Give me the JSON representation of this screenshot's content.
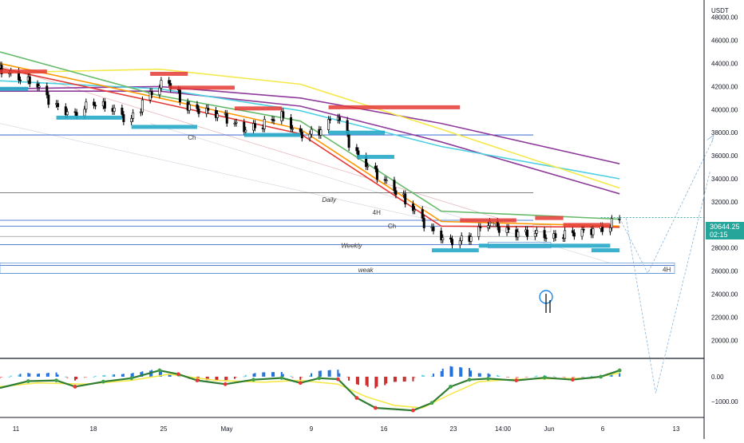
{
  "currency_label": "USDT",
  "price_axis": {
    "ticks": [
      "48000.00",
      "46000.00",
      "44000.00",
      "42000.00",
      "40000.00",
      "38000.00",
      "36000.00",
      "34000.00",
      "32000.00",
      "30000.00",
      "28000.00",
      "26000.00",
      "24000.00",
      "22000.00",
      "20000.00"
    ],
    "current_price": "30644.25",
    "countdown": "02:15"
  },
  "oscillator_axis": {
    "ticks": [
      "0.00",
      "−1000.00"
    ]
  },
  "time_axis": {
    "ticks": [
      "11",
      "18",
      "25",
      "May",
      "9",
      "16",
      "23",
      "14:00",
      "Jun",
      "6",
      "13"
    ]
  },
  "annotations": [
    "Ch",
    "Daily",
    "Weekly",
    "weak",
    "4H",
    "4H",
    "Ch",
    "Ch"
  ],
  "colors": {
    "up": "#26a69a",
    "down": "#ef5350",
    "candle": "#000000",
    "ma_yellow": "#f5e94a",
    "ma_cyan": "#4dd0e1",
    "ma_purple": "#8e3a9b",
    "ma_red": "#e53935",
    "ma_orange": "#ff9800",
    "ma_green": "#66bb6a",
    "resistance_zone": "#e53935",
    "support_zone": "#26a9c8",
    "level_line": "#1e56c8"
  },
  "chart_data": {
    "type": "candlestick",
    "x_range": [
      "2022-04-04",
      "2022-06-18"
    ],
    "ylim": [
      18500,
      49500
    ],
    "y_tick_values": [
      48000,
      46000,
      44000,
      42000,
      40000,
      38000,
      36000,
      34000,
      32000,
      30000,
      28000,
      26000,
      24000,
      22000,
      20000
    ],
    "current_price": 30644.25,
    "grid": false,
    "price_path": [
      [
        "2022-04-04",
        43600
      ],
      [
        "2022-04-06",
        42800
      ],
      [
        "2022-04-08",
        42200
      ],
      [
        "2022-04-10",
        40300
      ],
      [
        "2022-04-12",
        39500
      ],
      [
        "2022-04-14",
        40600
      ],
      [
        "2022-04-16",
        40100
      ],
      [
        "2022-04-18",
        39000
      ],
      [
        "2022-04-20",
        41300
      ],
      [
        "2022-04-22",
        42500
      ],
      [
        "2022-04-24",
        40200
      ],
      [
        "2022-04-26",
        39900
      ],
      [
        "2022-04-28",
        39400
      ],
      [
        "2022-04-30",
        38300
      ],
      [
        "2022-05-02",
        38600
      ],
      [
        "2022-05-04",
        39600
      ],
      [
        "2022-05-06",
        37800
      ],
      [
        "2022-05-08",
        38000
      ],
      [
        "2022-05-10",
        39600
      ],
      [
        "2022-05-12",
        36200
      ],
      [
        "2022-05-14",
        34600
      ],
      [
        "2022-05-16",
        33200
      ],
      [
        "2022-05-18",
        31500
      ],
      [
        "2022-05-20",
        29600
      ],
      [
        "2022-05-22",
        28500
      ],
      [
        "2022-05-24",
        28800
      ],
      [
        "2022-05-26",
        30200
      ],
      [
        "2022-05-27",
        29800
      ],
      [
        "2022-05-29",
        29300
      ],
      [
        "2022-05-31",
        29300
      ],
      [
        "2022-06-02",
        28900
      ],
      [
        "2022-06-04",
        29300
      ],
      [
        "2022-06-06",
        29500
      ],
      [
        "2022-06-08",
        29800
      ],
      [
        "2022-06-09",
        30644
      ]
    ],
    "moving_averages": [
      {
        "color": "#8e3a9b",
        "points": [
          [
            "2022-04-04",
            41800
          ],
          [
            "2022-04-21",
            42000
          ],
          [
            "2022-05-06",
            41000
          ],
          [
            "2022-05-21",
            38800
          ],
          [
            "2022-06-09",
            35300
          ]
        ]
      },
      {
        "color": "#8e3a9b",
        "points": [
          [
            "2022-04-04",
            41600
          ],
          [
            "2022-04-21",
            41600
          ],
          [
            "2022-05-06",
            40300
          ],
          [
            "2022-05-21",
            37200
          ],
          [
            "2022-06-09",
            32700
          ]
        ]
      },
      {
        "color": "#4dd0e1",
        "points": [
          [
            "2022-04-04",
            42500
          ],
          [
            "2022-04-21",
            41800
          ],
          [
            "2022-05-06",
            39900
          ],
          [
            "2022-05-21",
            36800
          ],
          [
            "2022-06-09",
            34000
          ]
        ]
      },
      {
        "color": "#f5e94a",
        "points": [
          [
            "2022-04-04",
            43200
          ],
          [
            "2022-04-21",
            43500
          ],
          [
            "2022-05-06",
            42200
          ],
          [
            "2022-05-21",
            38300
          ],
          [
            "2022-06-09",
            33200
          ]
        ]
      },
      {
        "color": "#66bb6a",
        "points": [
          [
            "2022-04-04",
            45000
          ],
          [
            "2022-04-21",
            41200
          ],
          [
            "2022-05-06",
            39000
          ],
          [
            "2022-05-21",
            31200
          ],
          [
            "2022-06-09",
            30500
          ]
        ]
      },
      {
        "color": "#ff9800",
        "points": [
          [
            "2022-04-04",
            44000
          ],
          [
            "2022-04-21",
            41000
          ],
          [
            "2022-05-06",
            38300
          ],
          [
            "2022-05-21",
            30300
          ],
          [
            "2022-06-09",
            29900
          ]
        ]
      },
      {
        "color": "#e53935",
        "points": [
          [
            "2022-04-04",
            43600
          ],
          [
            "2022-04-21",
            40600
          ],
          [
            "2022-05-06",
            37900
          ],
          [
            "2022-05-21",
            29900
          ],
          [
            "2022-06-09",
            29800
          ]
        ]
      }
    ],
    "resistance_zones": [
      [
        "2022-04-04",
        "2022-04-09",
        43300
      ],
      [
        "2022-04-20",
        "2022-04-24",
        43100
      ],
      [
        "2022-04-22",
        "2022-04-29",
        41900
      ],
      [
        "2022-04-29",
        "2022-05-04",
        40100
      ],
      [
        "2022-05-09",
        "2022-05-23",
        40200
      ],
      [
        "2022-05-23",
        "2022-05-29",
        30400
      ],
      [
        "2022-05-31",
        "2022-06-03",
        30600
      ],
      [
        "2022-06-03",
        "2022-06-08",
        30000
      ]
    ],
    "support_zones": [
      [
        "2022-04-04",
        "2022-04-07",
        41800
      ],
      [
        "2022-04-10",
        "2022-04-17",
        39300
      ],
      [
        "2022-04-18",
        "2022-04-25",
        38500
      ],
      [
        "2022-04-30",
        "2022-05-06",
        37800
      ],
      [
        "2022-05-09",
        "2022-05-15",
        38000
      ],
      [
        "2022-05-12",
        "2022-05-16",
        35900
      ],
      [
        "2022-05-20",
        "2022-05-25",
        27800
      ],
      [
        "2022-05-25",
        "2022-06-08",
        28200
      ],
      [
        "2022-06-06",
        "2022-06-09",
        27800
      ]
    ],
    "horizontal_levels": [
      37800,
      32800,
      30400,
      29900,
      29000,
      28300,
      26500,
      25800
    ],
    "projection": [
      [
        "2022-06-09",
        30600
      ],
      [
        "2022-06-12",
        25800
      ],
      [
        "2022-06-19",
        37500
      ]
    ],
    "oscillator": {
      "ylim": [
        -1600,
        700
      ],
      "ticks": [
        0,
        -1000
      ],
      "fast_line": [
        [
          "2022-04-04",
          -450
        ],
        [
          "2022-04-07",
          -180
        ],
        [
          "2022-04-10",
          -150
        ],
        [
          "2022-04-12",
          -400
        ],
        [
          "2022-04-15",
          -200
        ],
        [
          "2022-04-18",
          -60
        ],
        [
          "2022-04-21",
          250
        ],
        [
          "2022-04-23",
          100
        ],
        [
          "2022-04-25",
          -150
        ],
        [
          "2022-04-28",
          -300
        ],
        [
          "2022-05-01",
          -120
        ],
        [
          "2022-05-04",
          -50
        ],
        [
          "2022-05-06",
          -250
        ],
        [
          "2022-05-08",
          -60
        ],
        [
          "2022-05-10",
          -100
        ],
        [
          "2022-05-12",
          -850
        ],
        [
          "2022-05-14",
          -1250
        ],
        [
          "2022-05-18",
          -1350
        ],
        [
          "2022-05-20",
          -1050
        ],
        [
          "2022-05-22",
          -400
        ],
        [
          "2022-05-24",
          -120
        ],
        [
          "2022-05-26",
          -80
        ],
        [
          "2022-05-29",
          -150
        ],
        [
          "2022-06-01",
          -40
        ],
        [
          "2022-06-04",
          -120
        ],
        [
          "2022-06-07",
          0
        ],
        [
          "2022-06-09",
          250
        ]
      ],
      "slow_line": [
        [
          "2022-04-04",
          -400
        ],
        [
          "2022-04-08",
          -250
        ],
        [
          "2022-04-13",
          -300
        ],
        [
          "2022-04-18",
          -150
        ],
        [
          "2022-04-22",
          100
        ],
        [
          "2022-04-27",
          -150
        ],
        [
          "2022-05-02",
          -220
        ],
        [
          "2022-05-06",
          -150
        ],
        [
          "2022-05-10",
          -300
        ],
        [
          "2022-05-13",
          -800
        ],
        [
          "2022-05-16",
          -1150
        ],
        [
          "2022-05-19",
          -1250
        ],
        [
          "2022-05-22",
          -700
        ],
        [
          "2022-05-25",
          -200
        ],
        [
          "2022-05-29",
          -100
        ],
        [
          "2022-06-02",
          -80
        ],
        [
          "2022-06-06",
          -60
        ],
        [
          "2022-06-09",
          150
        ]
      ]
    }
  }
}
